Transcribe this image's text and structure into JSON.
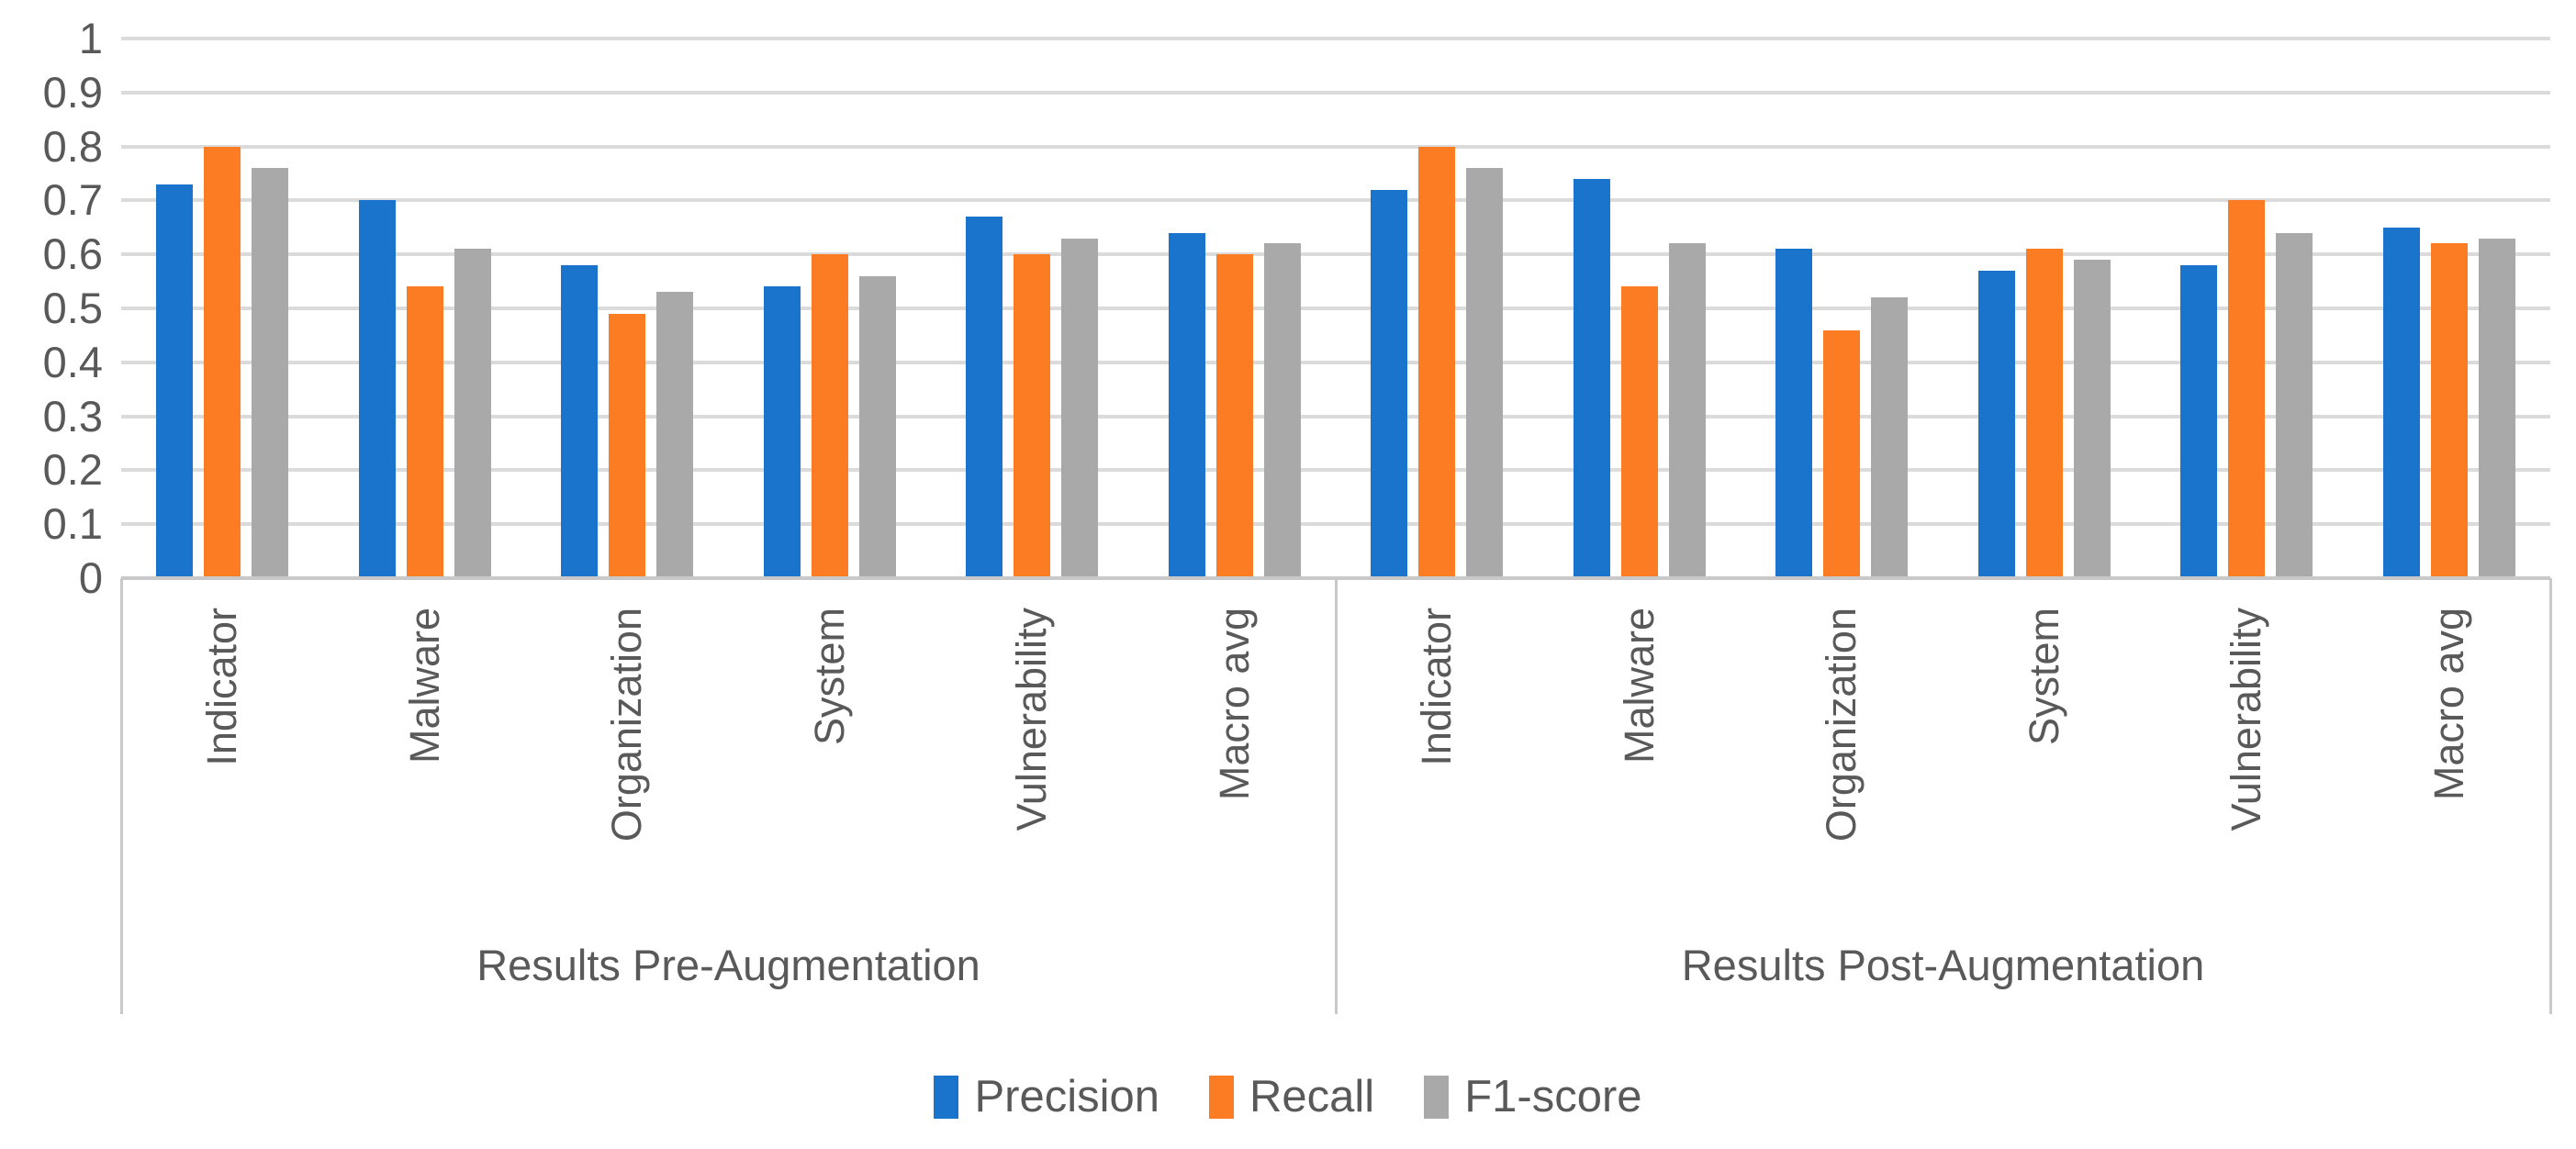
{
  "chart_data": {
    "type": "bar",
    "title": "",
    "y_axis": {
      "min": 0,
      "max": 1,
      "step": 0.1,
      "ticks": [
        "1",
        "0.9",
        "0.8",
        "0.7",
        "0.6",
        "0.5",
        "0.4",
        "0.3",
        "0.2",
        "0.1",
        "0"
      ]
    },
    "grid": true,
    "legend_position": "bottom",
    "groups": [
      {
        "key": "pre",
        "label": "Results Pre-Augmentation",
        "categories": [
          "Indicator",
          "Malware",
          "Organization",
          "System",
          "Vulnerability",
          "Macro avg"
        ]
      },
      {
        "key": "post",
        "label": "Results Post-Augmentation",
        "categories": [
          "Indicator",
          "Malware",
          "Organization",
          "System",
          "Vulnerability",
          "Macro avg"
        ]
      }
    ],
    "series": [
      {
        "name": "Precision",
        "color": "#1B74CB",
        "values": {
          "pre": [
            0.73,
            0.7,
            0.58,
            0.54,
            0.67,
            0.64
          ],
          "post": [
            0.72,
            0.74,
            0.61,
            0.57,
            0.58,
            0.65
          ]
        }
      },
      {
        "name": "Recall",
        "color": "#FC7C24",
        "values": {
          "pre": [
            0.8,
            0.54,
            0.49,
            0.6,
            0.6,
            0.6
          ],
          "post": [
            0.8,
            0.54,
            0.46,
            0.61,
            0.7,
            0.62
          ]
        }
      },
      {
        "name": "F1-score",
        "color": "#A9A9A9",
        "values": {
          "pre": [
            0.76,
            0.61,
            0.53,
            0.56,
            0.63,
            0.62
          ],
          "post": [
            0.76,
            0.62,
            0.52,
            0.59,
            0.64,
            0.63
          ]
        }
      }
    ],
    "colors": {
      "gridline": "#DBDBDB",
      "axis_line": "#C9C9C9",
      "text": "#595959",
      "background": "#FFFFFF"
    }
  }
}
